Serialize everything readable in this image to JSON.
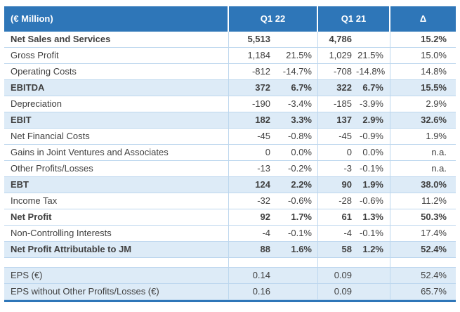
{
  "colors": {
    "header_bg": "#2E76B8",
    "shaded_row_bg": "#DDEBF7",
    "row_border": "#BDD7EE",
    "text": "#404040",
    "header_text": "#FFFFFF"
  },
  "chart_data": {
    "type": "table",
    "column_headers": {
      "label": "(€ Million)",
      "q1_22": "Q1 22",
      "q1_21": "Q1 21",
      "delta": "Δ"
    },
    "rows": [
      {
        "label": "Net Sales and Services",
        "q1_22": "5,513",
        "q1_22_pct": "",
        "q1_21": "4,786",
        "q1_21_pct": "",
        "delta": "15.2%",
        "bold": true,
        "shaded": false,
        "spacer": false
      },
      {
        "label": "Gross Profit",
        "q1_22": "1,184",
        "q1_22_pct": "21.5%",
        "q1_21": "1,029",
        "q1_21_pct": "21.5%",
        "delta": "15.0%",
        "bold": false,
        "shaded": false,
        "spacer": false
      },
      {
        "label": "Operating Costs",
        "q1_22": "-812",
        "q1_22_pct": "-14.7%",
        "q1_21": "-708",
        "q1_21_pct": "-14.8%",
        "delta": "14.8%",
        "bold": false,
        "shaded": false,
        "spacer": false
      },
      {
        "label": "EBITDA",
        "q1_22": "372",
        "q1_22_pct": "6.7%",
        "q1_21": "322",
        "q1_21_pct": "6.7%",
        "delta": "15.5%",
        "bold": true,
        "shaded": true,
        "spacer": false
      },
      {
        "label": "Depreciation",
        "q1_22": "-190",
        "q1_22_pct": "-3.4%",
        "q1_21": "-185",
        "q1_21_pct": "-3.9%",
        "delta": "2.9%",
        "bold": false,
        "shaded": false,
        "spacer": false
      },
      {
        "label": "EBIT",
        "q1_22": "182",
        "q1_22_pct": "3.3%",
        "q1_21": "137",
        "q1_21_pct": "2.9%",
        "delta": "32.6%",
        "bold": true,
        "shaded": true,
        "spacer": false
      },
      {
        "label": "Net Financial Costs",
        "q1_22": "-45",
        "q1_22_pct": "-0.8%",
        "q1_21": "-45",
        "q1_21_pct": "-0.9%",
        "delta": "1.9%",
        "bold": false,
        "shaded": false,
        "spacer": false
      },
      {
        "label": "Gains in Joint Ventures and Associates",
        "q1_22": "0",
        "q1_22_pct": "0.0%",
        "q1_21": "0",
        "q1_21_pct": "0.0%",
        "delta": "n.a.",
        "bold": false,
        "shaded": false,
        "spacer": false
      },
      {
        "label": "Other Profits/Losses",
        "q1_22": "-13",
        "q1_22_pct": "-0.2%",
        "q1_21": "-3",
        "q1_21_pct": "-0.1%",
        "delta": "n.a.",
        "bold": false,
        "shaded": false,
        "spacer": false
      },
      {
        "label": "EBT",
        "q1_22": "124",
        "q1_22_pct": "2.2%",
        "q1_21": "90",
        "q1_21_pct": "1.9%",
        "delta": "38.0%",
        "bold": true,
        "shaded": true,
        "spacer": false
      },
      {
        "label": "Income Tax",
        "q1_22": "-32",
        "q1_22_pct": "-0.6%",
        "q1_21": "-28",
        "q1_21_pct": "-0.6%",
        "delta": "11.2%",
        "bold": false,
        "shaded": false,
        "spacer": false
      },
      {
        "label": "Net Profit",
        "q1_22": "92",
        "q1_22_pct": "1.7%",
        "q1_21": "61",
        "q1_21_pct": "1.3%",
        "delta": "50.3%",
        "bold": true,
        "shaded": false,
        "spacer": false
      },
      {
        "label": "Non-Controlling Interests",
        "q1_22": "-4",
        "q1_22_pct": "-0.1%",
        "q1_21": "-4",
        "q1_21_pct": "-0.1%",
        "delta": "17.4%",
        "bold": false,
        "shaded": false,
        "spacer": false
      },
      {
        "label": "Net Profit Attributable to JM",
        "q1_22": "88",
        "q1_22_pct": "1.6%",
        "q1_21": "58",
        "q1_21_pct": "1.2%",
        "delta": "52.4%",
        "bold": true,
        "shaded": true,
        "spacer": false
      },
      {
        "label": "",
        "q1_22": "",
        "q1_22_pct": "",
        "q1_21": "",
        "q1_21_pct": "",
        "delta": "",
        "bold": false,
        "shaded": false,
        "spacer": true
      },
      {
        "label": "EPS (€)",
        "q1_22": "0.14",
        "q1_22_pct": "",
        "q1_21": "0.09",
        "q1_21_pct": "",
        "delta": "52.4%",
        "bold": false,
        "shaded": true,
        "spacer": false
      },
      {
        "label": "EPS without Other Profits/Losses (€)",
        "q1_22": "0.16",
        "q1_22_pct": "",
        "q1_21": "0.09",
        "q1_21_pct": "",
        "delta": "65.7%",
        "bold": false,
        "shaded": true,
        "spacer": false
      }
    ]
  }
}
